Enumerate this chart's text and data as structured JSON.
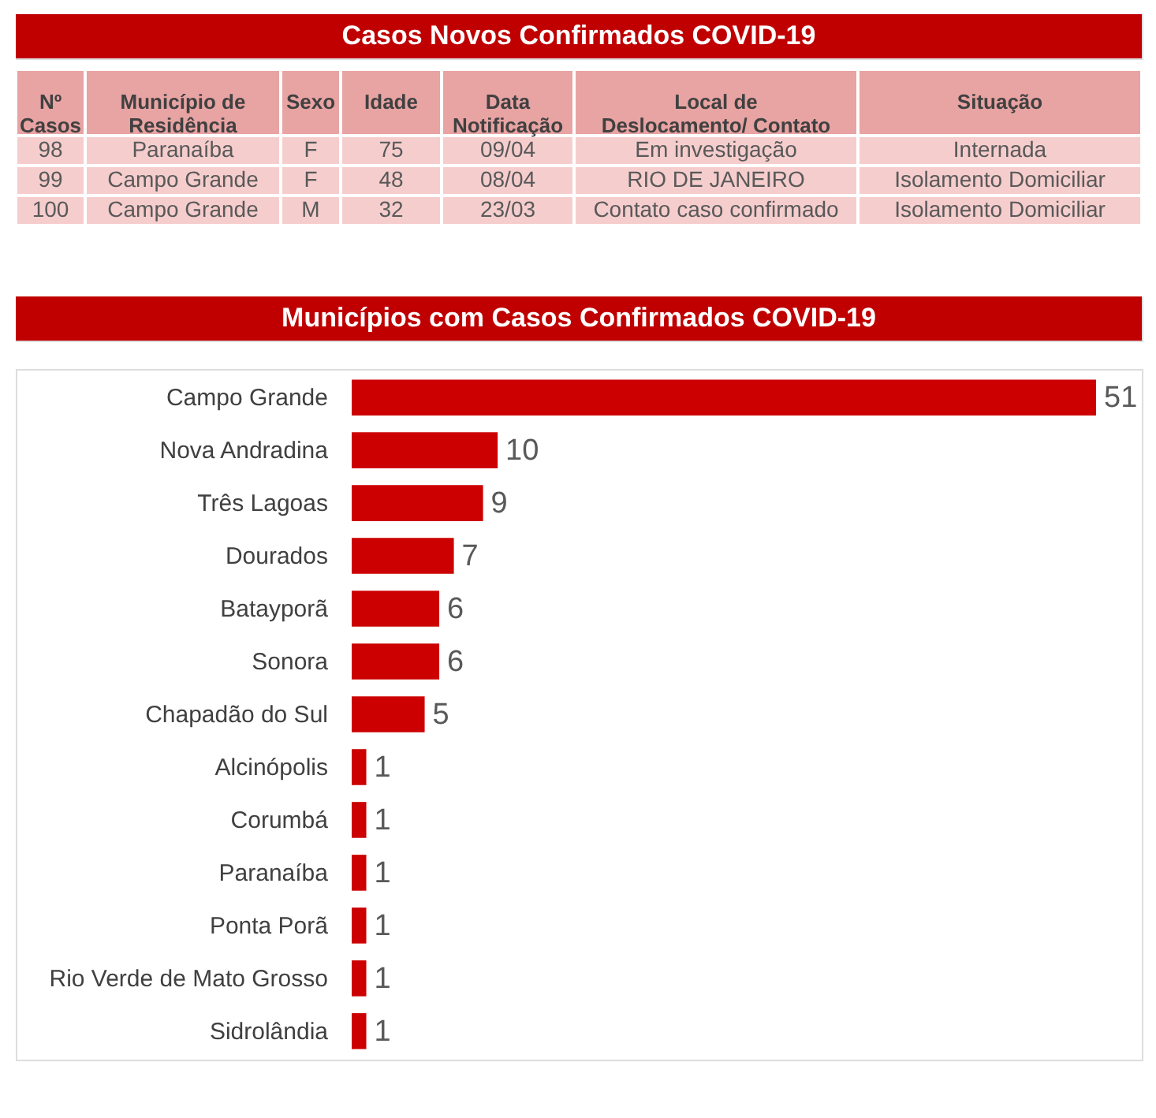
{
  "chart_data": [
    {
      "type": "other",
      "title": "Casos Novos Confirmados COVID-19",
      "categories": [
        "Nº Casos",
        "Município de Residência",
        "Sexo",
        "Idade",
        "Data Notificação",
        "Local de Deslocamento/ Contato",
        "Situação"
      ],
      "cell_labels": [
        [
          "98",
          "Paranaíba",
          "F",
          "75",
          "09/04",
          "Em investigação",
          "Internada"
        ],
        [
          "99",
          "Campo Grande",
          "F",
          "48",
          "08/04",
          "RIO DE JANEIRO",
          "Isolamento Domiciliar"
        ],
        [
          "100",
          "Campo Grande",
          "M",
          "32",
          "23/03",
          "Contato caso confirmado",
          "Isolamento Domiciliar"
        ]
      ]
    },
    {
      "type": "bar",
      "orientation": "horizontal",
      "title": "Municípios com Casos Confirmados COVID-19",
      "categories": [
        "Campo Grande",
        "Nova Andradina",
        "Três Lagoas",
        "Dourados",
        "Batayporã",
        "Sonora",
        "Chapadão do Sul",
        "Alcinópolis",
        "Corumbá",
        "Paranaíba",
        "Ponta Porã",
        "Rio Verde de Mato Grosso",
        "Sidrolândia"
      ],
      "values": [
        51,
        10,
        9,
        7,
        6,
        6,
        5,
        1,
        1,
        1,
        1,
        1,
        1
      ],
      "color": "#cc0000",
      "data_labels": true
    }
  ]
}
